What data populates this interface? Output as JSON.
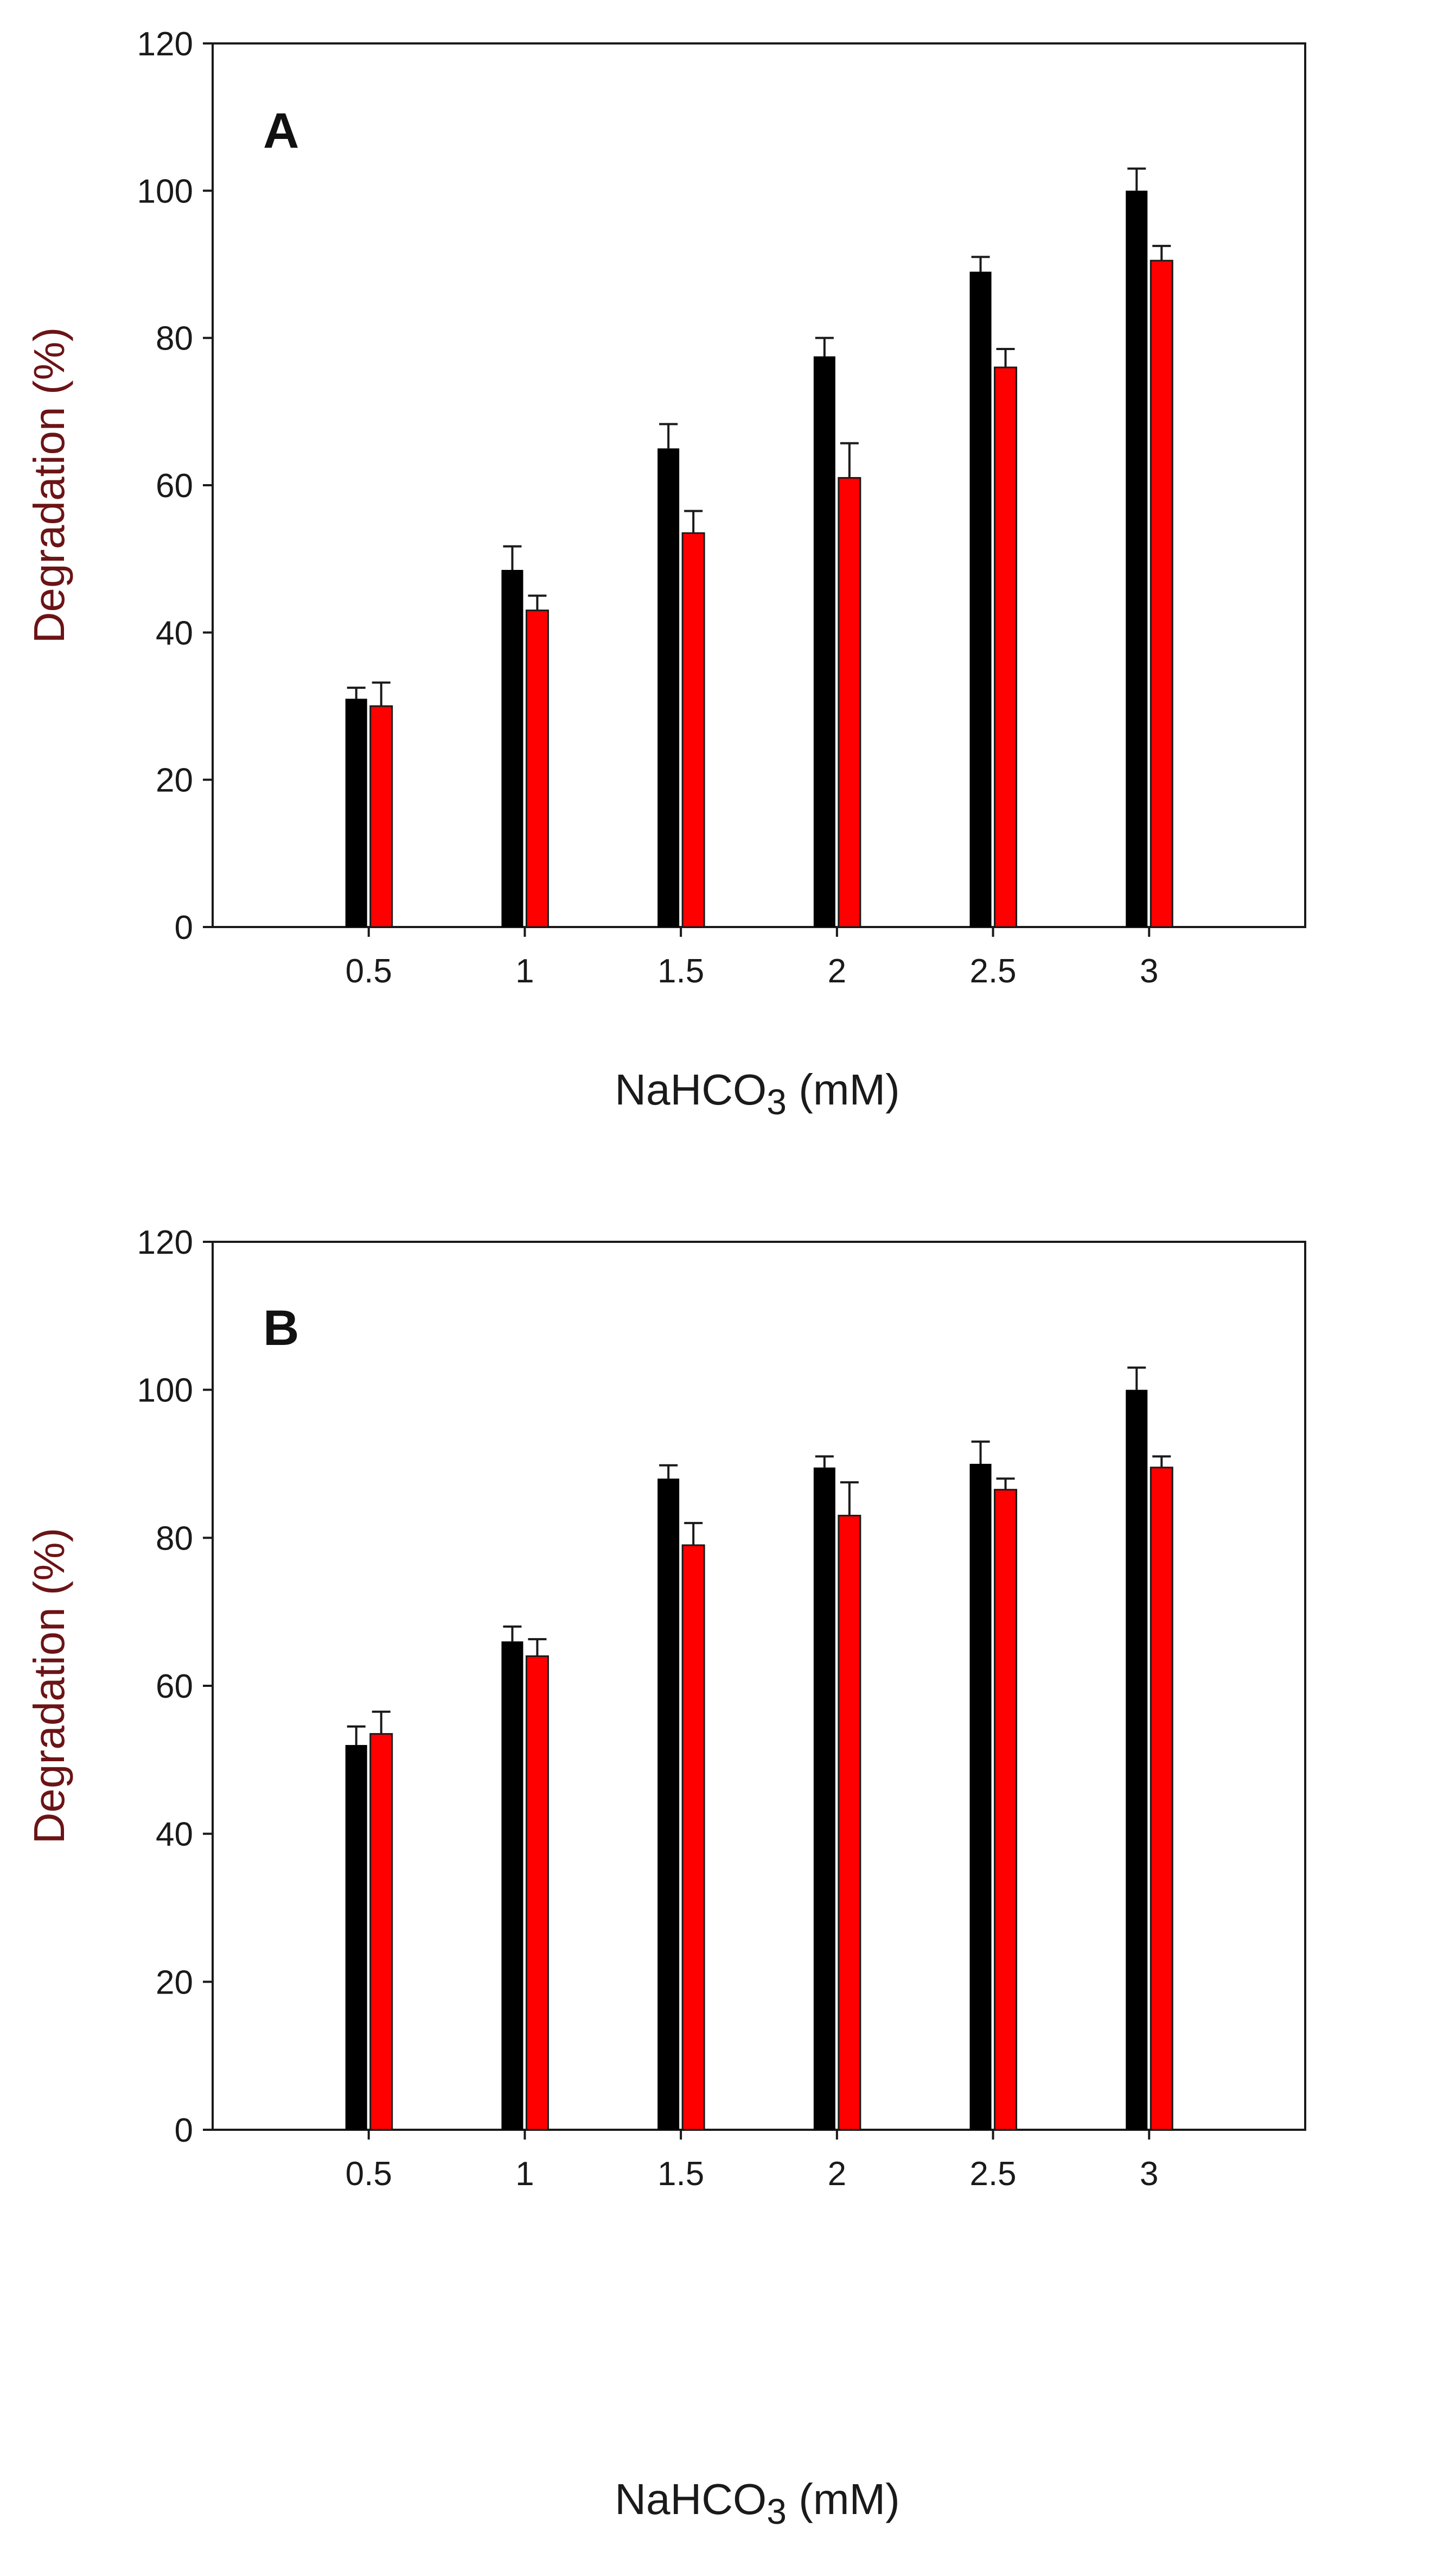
{
  "colors": {
    "series_black": "#000000",
    "series_red": "#ff0000",
    "axis": "#1a1a1a",
    "ylabel": "#6b1416"
  },
  "chart_data": [
    {
      "panel": "A",
      "type": "bar",
      "categories": [
        "0.5",
        "1",
        "1.5",
        "2",
        "2.5",
        "3"
      ],
      "series": [
        {
          "name": "black",
          "values": [
            31,
            48.5,
            65,
            77.5,
            89,
            100
          ],
          "errors": [
            1.5,
            3.2,
            3.3,
            2.5,
            2.0,
            3.0
          ]
        },
        {
          "name": "red",
          "values": [
            30,
            43,
            53.5,
            61,
            76,
            90.5
          ],
          "errors": [
            3.2,
            2.0,
            3.0,
            4.7,
            2.5,
            2.0
          ]
        }
      ],
      "xlabel_main": "NaHCO",
      "xlabel_sub": "3",
      "xlabel_unit": " (mM)",
      "ylabel": "Degradation (%)",
      "yticks": [
        "0",
        "20",
        "40",
        "60",
        "80",
        "100",
        "120"
      ],
      "ylim": [
        0,
        120
      ]
    },
    {
      "panel": "B",
      "type": "bar",
      "categories": [
        "0.5",
        "1",
        "1.5",
        "2",
        "2.5",
        "3"
      ],
      "series": [
        {
          "name": "black",
          "values": [
            52,
            66,
            88,
            89.5,
            90,
            100
          ],
          "errors": [
            2.5,
            2.0,
            1.8,
            1.5,
            3.0,
            3.0
          ]
        },
        {
          "name": "red",
          "values": [
            53.5,
            64,
            79,
            83,
            86.5,
            89.5
          ],
          "errors": [
            3.0,
            2.3,
            3.0,
            4.5,
            1.5,
            1.5
          ]
        }
      ],
      "xlabel_main": "NaHCO",
      "xlabel_sub": "3",
      "xlabel_unit": " (mM)",
      "ylabel": "Degradation (%)",
      "yticks": [
        "0",
        "20",
        "40",
        "60",
        "80",
        "100",
        "120"
      ],
      "ylim": [
        0,
        120
      ]
    }
  ]
}
